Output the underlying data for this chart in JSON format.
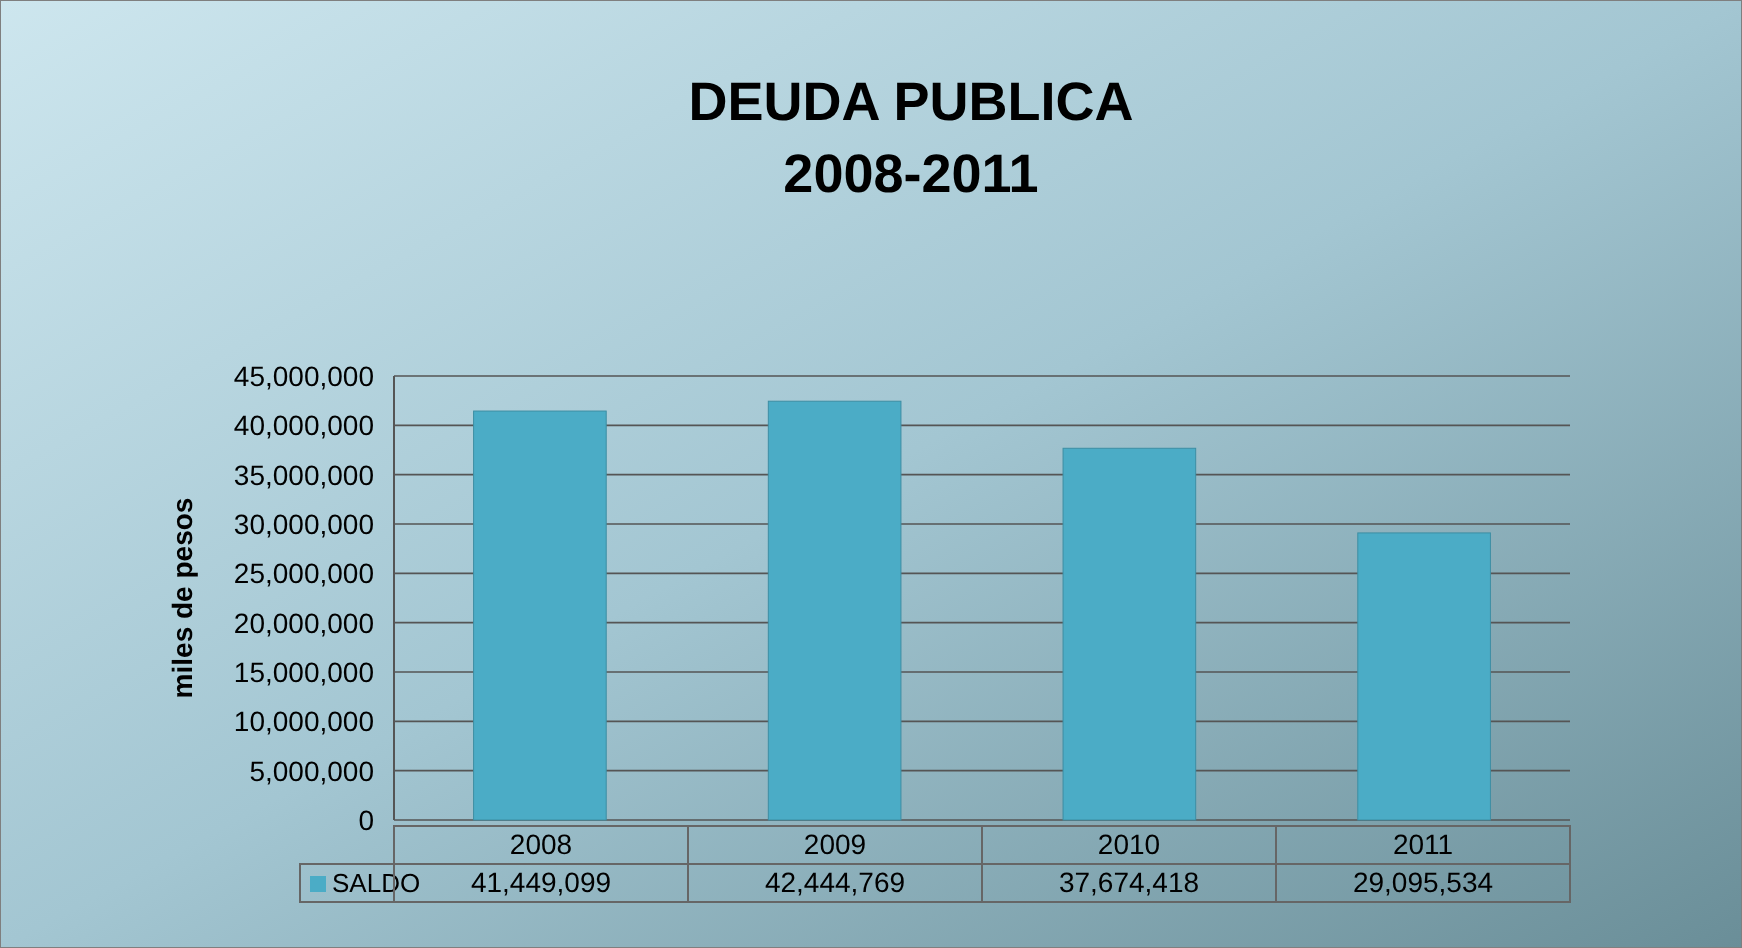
{
  "chart_data": {
    "type": "bar",
    "title": "DEUDA PUBLICA",
    "subtitle": "2008-2011",
    "ylabel": "miles de pesos",
    "categories": [
      "2008",
      "2009",
      "2010",
      "2011"
    ],
    "series": [
      {
        "name": "SALDO",
        "color": "#4bacc6",
        "values": [
          41449099,
          42444769,
          37674418,
          29095534
        ],
        "value_labels": [
          "41,449,099",
          "42,444,769",
          "37,674,418",
          "29,095,534"
        ]
      }
    ],
    "ylim": [
      0,
      45000000
    ],
    "yticks": [
      {
        "value": 0,
        "label": "0"
      },
      {
        "value": 5000000,
        "label": "5,000,000"
      },
      {
        "value": 10000000,
        "label": "10,000,000"
      },
      {
        "value": 15000000,
        "label": "15,000,000"
      },
      {
        "value": 20000000,
        "label": "20,000,000"
      },
      {
        "value": 25000000,
        "label": "25,000,000"
      },
      {
        "value": 30000000,
        "label": "30,000,000"
      },
      {
        "value": 35000000,
        "label": "35,000,000"
      },
      {
        "value": 40000000,
        "label": "40,000,000"
      },
      {
        "value": 45000000,
        "label": "45,000,000"
      }
    ],
    "grid": "y",
    "legend": "bottom"
  }
}
